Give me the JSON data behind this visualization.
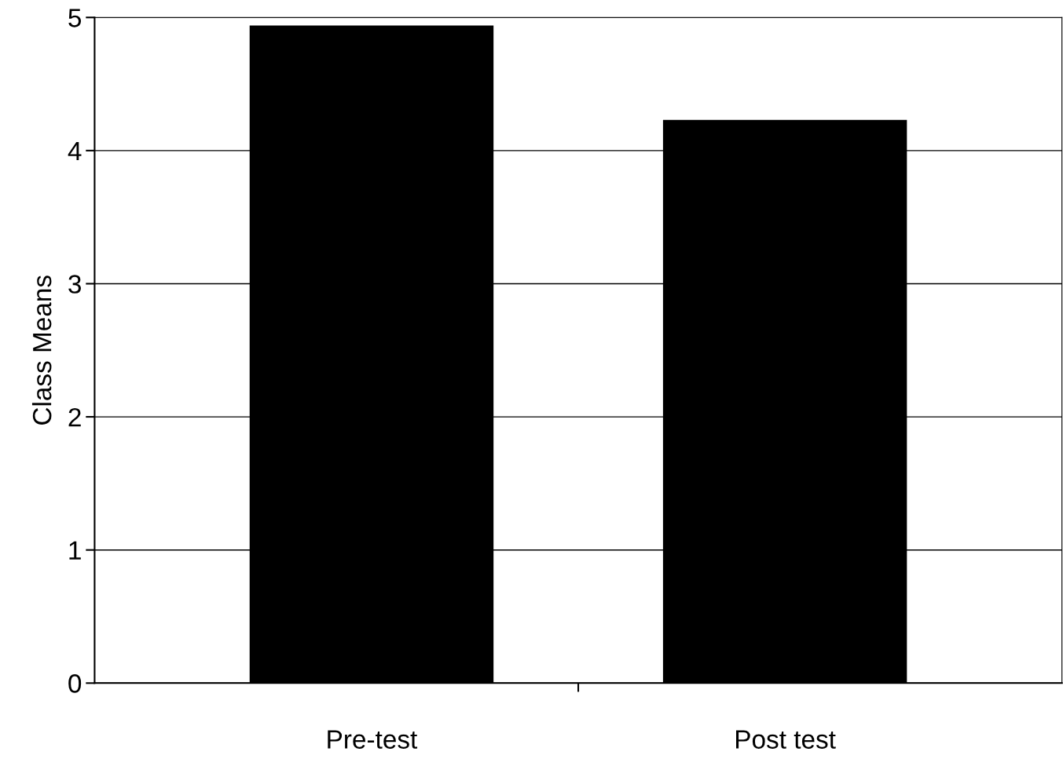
{
  "chart_data": {
    "type": "bar",
    "ylabel": "Class Means",
    "categories": [
      "Pre-test",
      "Post test"
    ],
    "values": [
      4.94,
      4.23
    ],
    "color": "#000000",
    "ylim": [
      0,
      5
    ],
    "yticks": [
      0,
      1,
      2,
      3,
      4,
      5
    ],
    "grid": "y"
  }
}
